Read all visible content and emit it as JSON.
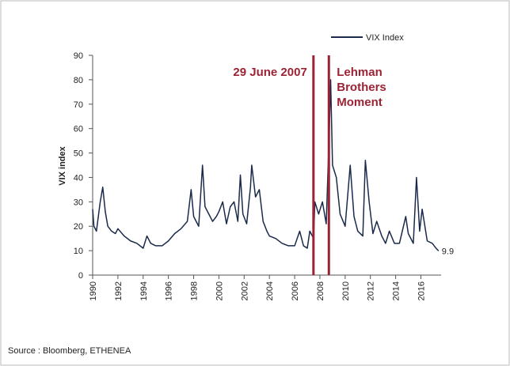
{
  "chart_data": {
    "type": "line",
    "y_label": "VIX index",
    "source": "Source : Bloomberg, ETHENEA",
    "x": [
      1990.0,
      1990.1,
      1990.3,
      1990.6,
      1990.8,
      1991.0,
      1991.2,
      1991.5,
      1991.8,
      1992.0,
      1992.5,
      1993.0,
      1993.5,
      1994.0,
      1994.3,
      1994.6,
      1995.0,
      1995.5,
      1996.0,
      1996.5,
      1997.0,
      1997.5,
      1997.8,
      1998.0,
      1998.4,
      1998.7,
      1998.9,
      1999.2,
      1999.5,
      1999.8,
      2000.0,
      2000.3,
      2000.6,
      2000.9,
      2001.2,
      2001.5,
      2001.7,
      2001.9,
      2002.2,
      2002.5,
      2002.6,
      2002.9,
      2003.2,
      2003.5,
      2003.8,
      2004.0,
      2004.5,
      2005.0,
      2005.5,
      2006.0,
      2006.4,
      2006.7,
      2007.0,
      2007.2,
      2007.5,
      2007.6,
      2007.9,
      2008.2,
      2008.5,
      2008.75,
      2008.85,
      2009.0,
      2009.3,
      2009.6,
      2010.0,
      2010.4,
      2010.7,
      2011.0,
      2011.4,
      2011.6,
      2011.9,
      2012.2,
      2012.5,
      2012.9,
      2013.2,
      2013.5,
      2013.9,
      2014.3,
      2014.8,
      2015.0,
      2015.4,
      2015.65,
      2015.9,
      2016.1,
      2016.5,
      2016.9,
      2017.2,
      2017.4
    ],
    "series": [
      {
        "name": "VIX Index",
        "color": "#1b2a4a",
        "values": [
          27,
          20,
          18,
          30,
          36,
          26,
          20,
          18,
          17,
          19,
          16,
          14,
          13,
          11,
          16,
          13,
          12,
          12,
          14,
          17,
          19,
          22,
          35,
          24,
          20,
          45,
          28,
          25,
          22,
          24,
          26,
          30,
          21,
          28,
          30,
          22,
          41,
          25,
          21,
          36,
          45,
          32,
          35,
          22,
          18,
          16,
          15,
          13,
          12,
          12,
          18,
          12,
          11,
          18,
          15,
          30,
          25,
          30,
          21,
          60,
          80,
          45,
          40,
          25,
          20,
          45,
          24,
          18,
          16,
          47,
          30,
          17,
          22,
          16,
          13,
          18,
          13,
          13,
          24,
          17,
          13,
          40,
          18,
          27,
          14,
          13,
          11,
          9.9
        ]
      }
    ],
    "xlim": [
      1990,
      2017.6
    ],
    "xticks": [
      1990,
      1992,
      1994,
      1996,
      1998,
      2000,
      2002,
      2004,
      2006,
      2008,
      2010,
      2012,
      2014,
      2016
    ],
    "ylim": [
      0,
      90
    ],
    "yticks": [
      0,
      10,
      20,
      30,
      40,
      50,
      60,
      70,
      80,
      90
    ],
    "annotations": [
      {
        "x": 2007.49,
        "color": "#9b2335",
        "lines": [
          "29 June 2007"
        ]
      },
      {
        "x": 2008.71,
        "color": "#9b2335",
        "lines": [
          "Lehman",
          "Brothers",
          "Moment"
        ]
      }
    ]
  }
}
